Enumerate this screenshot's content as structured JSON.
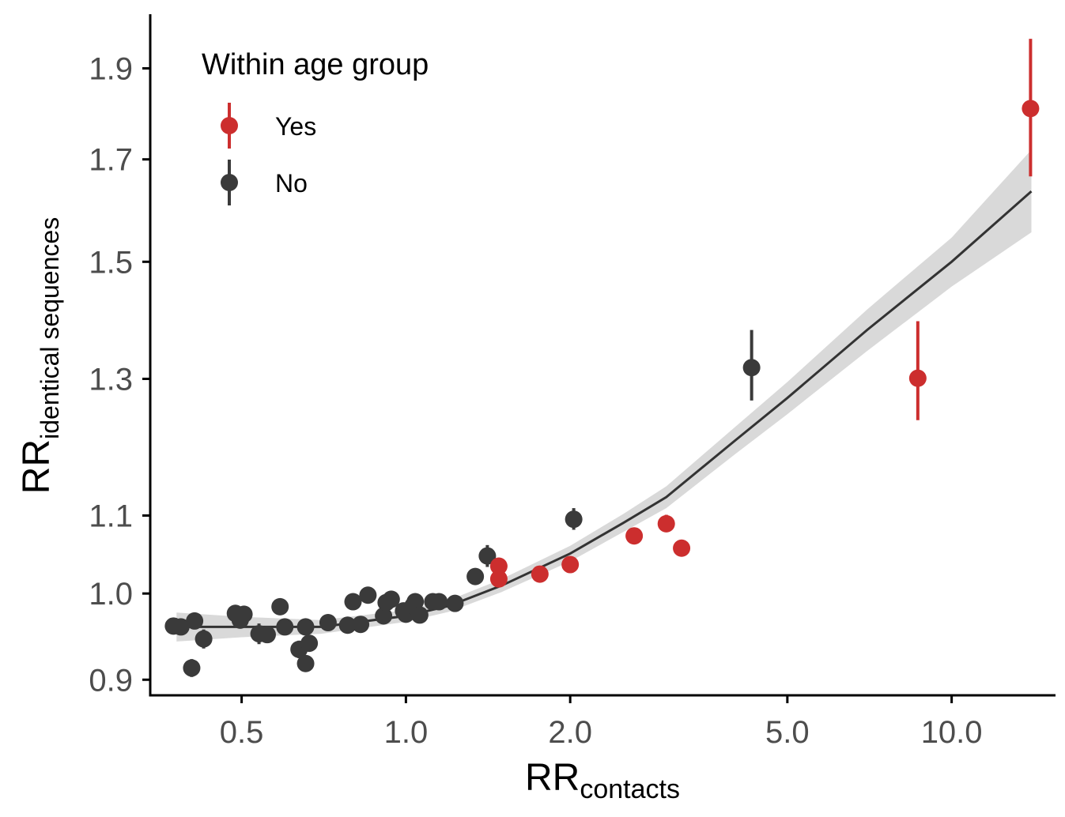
{
  "chart_data": {
    "type": "scatter",
    "x_scale": "log",
    "y_scale": "log",
    "xlim": [
      0.34,
      15.5
    ],
    "ylim": [
      0.883,
      2.03
    ],
    "x_ticks": [
      0.5,
      1.0,
      2.0,
      5.0,
      10.0
    ],
    "x_tick_labels": [
      "0.5",
      "1.0",
      "2.0",
      "5.0",
      "10.0"
    ],
    "y_ticks": [
      0.9,
      1.0,
      1.1,
      1.3,
      1.5,
      1.7,
      1.9
    ],
    "y_tick_labels": [
      "0.9",
      "1.0",
      "1.1",
      "1.3",
      "1.5",
      "1.7",
      "1.9"
    ],
    "xlabel": {
      "main": "RR",
      "sub": "contacts"
    },
    "ylabel": {
      "main": "RR",
      "sub": "identical sequences"
    },
    "grid": false,
    "legend": {
      "title": "Within age group",
      "position": "top-left",
      "entries": [
        {
          "key": "yes",
          "label": "Yes",
          "color": "#cc2e2e"
        },
        {
          "key": "no",
          "label": "No",
          "color": "#3a3a3a"
        }
      ]
    },
    "series": [
      {
        "group": "yes",
        "color": "#cc2e2e",
        "points": [
          {
            "x": 1.48,
            "y": 1.034,
            "lo": 1.025,
            "hi": 1.043
          },
          {
            "x": 1.48,
            "y": 1.018,
            "lo": 1.011,
            "hi": 1.025
          },
          {
            "x": 1.76,
            "y": 1.024,
            "lo": 1.018,
            "hi": 1.03
          },
          {
            "x": 2.0,
            "y": 1.036,
            "lo": 1.03,
            "hi": 1.042
          },
          {
            "x": 2.62,
            "y": 1.073,
            "lo": 1.066,
            "hi": 1.08
          },
          {
            "x": 3.0,
            "y": 1.089,
            "lo": 1.078,
            "hi": 1.101
          },
          {
            "x": 3.2,
            "y": 1.057,
            "lo": 1.05,
            "hi": 1.064
          },
          {
            "x": 8.67,
            "y": 1.301,
            "lo": 1.236,
            "hi": 1.395
          },
          {
            "x": 13.95,
            "y": 1.809,
            "lo": 1.665,
            "hi": 1.97
          }
        ]
      },
      {
        "group": "no",
        "color": "#3a3a3a",
        "points": [
          {
            "x": 0.375,
            "y": 0.961,
            "lo": 0.955,
            "hi": 0.967
          },
          {
            "x": 0.387,
            "y": 0.96,
            "lo": 0.954,
            "hi": 0.966
          },
          {
            "x": 0.41,
            "y": 0.967,
            "lo": 0.96,
            "hi": 0.974
          },
          {
            "x": 0.405,
            "y": 0.913,
            "lo": 0.903,
            "hi": 0.923
          },
          {
            "x": 0.426,
            "y": 0.946,
            "lo": 0.935,
            "hi": 0.957
          },
          {
            "x": 0.487,
            "y": 0.976,
            "lo": 0.969,
            "hi": 0.983
          },
          {
            "x": 0.497,
            "y": 0.968,
            "lo": 0.961,
            "hi": 0.975
          },
          {
            "x": 0.505,
            "y": 0.975,
            "lo": 0.968,
            "hi": 0.982
          },
          {
            "x": 0.538,
            "y": 0.952,
            "lo": 0.94,
            "hi": 0.964
          },
          {
            "x": 0.557,
            "y": 0.951,
            "lo": 0.944,
            "hi": 0.958
          },
          {
            "x": 0.588,
            "y": 0.984,
            "lo": 0.978,
            "hi": 0.99
          },
          {
            "x": 0.6,
            "y": 0.96,
            "lo": 0.954,
            "hi": 0.966
          },
          {
            "x": 0.637,
            "y": 0.934,
            "lo": 0.924,
            "hi": 0.944
          },
          {
            "x": 0.655,
            "y": 0.96,
            "lo": 0.953,
            "hi": 0.967
          },
          {
            "x": 0.655,
            "y": 0.918,
            "lo": 0.911,
            "hi": 0.925
          },
          {
            "x": 0.665,
            "y": 0.941,
            "lo": 0.932,
            "hi": 0.95
          },
          {
            "x": 0.72,
            "y": 0.965,
            "lo": 0.959,
            "hi": 0.971
          },
          {
            "x": 0.782,
            "y": 0.962,
            "lo": 0.956,
            "hi": 0.968
          },
          {
            "x": 0.8,
            "y": 0.99,
            "lo": 0.984,
            "hi": 0.996
          },
          {
            "x": 0.826,
            "y": 0.963,
            "lo": 0.957,
            "hi": 0.969
          },
          {
            "x": 0.852,
            "y": 0.998,
            "lo": 0.992,
            "hi": 1.004
          },
          {
            "x": 0.91,
            "y": 0.973,
            "lo": 0.967,
            "hi": 0.979
          },
          {
            "x": 0.92,
            "y": 0.989,
            "lo": 0.983,
            "hi": 0.995
          },
          {
            "x": 0.94,
            "y": 0.993,
            "lo": 0.987,
            "hi": 0.999
          },
          {
            "x": 0.99,
            "y": 0.979,
            "lo": 0.973,
            "hi": 0.985
          },
          {
            "x": 1.0,
            "y": 0.975,
            "lo": 0.969,
            "hi": 0.981
          },
          {
            "x": 1.03,
            "y": 0.985,
            "lo": 0.979,
            "hi": 0.991
          },
          {
            "x": 1.04,
            "y": 0.99,
            "lo": 0.984,
            "hi": 0.996
          },
          {
            "x": 1.06,
            "y": 0.974,
            "lo": 0.968,
            "hi": 0.98
          },
          {
            "x": 1.12,
            "y": 0.99,
            "lo": 0.984,
            "hi": 0.996
          },
          {
            "x": 1.15,
            "y": 0.99,
            "lo": 0.984,
            "hi": 0.996
          },
          {
            "x": 1.23,
            "y": 0.988,
            "lo": 0.982,
            "hi": 0.994
          },
          {
            "x": 1.34,
            "y": 1.021,
            "lo": 1.014,
            "hi": 1.028
          },
          {
            "x": 1.41,
            "y": 1.047,
            "lo": 1.033,
            "hi": 1.061
          },
          {
            "x": 2.03,
            "y": 1.095,
            "lo": 1.081,
            "hi": 1.11
          },
          {
            "x": 4.3,
            "y": 1.318,
            "lo": 1.266,
            "hi": 1.38
          }
        ]
      }
    ],
    "fit": {
      "color": "#333333",
      "band_color": "#d9d9d9",
      "points": [
        {
          "x": 0.38,
          "y": 0.96,
          "lo": 0.943,
          "hi": 0.977
        },
        {
          "x": 0.5,
          "y": 0.96,
          "lo": 0.948,
          "hi": 0.972
        },
        {
          "x": 0.7,
          "y": 0.96,
          "lo": 0.952,
          "hi": 0.968
        },
        {
          "x": 1.0,
          "y": 0.973,
          "lo": 0.966,
          "hi": 0.98
        },
        {
          "x": 1.2,
          "y": 0.985,
          "lo": 0.978,
          "hi": 0.992
        },
        {
          "x": 1.5,
          "y": 1.01,
          "lo": 1.002,
          "hi": 1.018
        },
        {
          "x": 2.0,
          "y": 1.05,
          "lo": 1.04,
          "hi": 1.06
        },
        {
          "x": 2.5,
          "y": 1.09,
          "lo": 1.078,
          "hi": 1.102
        },
        {
          "x": 3.0,
          "y": 1.125,
          "lo": 1.11,
          "hi": 1.14
        },
        {
          "x": 4.0,
          "y": 1.205,
          "lo": 1.185,
          "hi": 1.225
        },
        {
          "x": 5.0,
          "y": 1.27,
          "lo": 1.245,
          "hi": 1.295
        },
        {
          "x": 7.0,
          "y": 1.38,
          "lo": 1.345,
          "hi": 1.415
        },
        {
          "x": 10.0,
          "y": 1.5,
          "lo": 1.455,
          "hi": 1.545
        },
        {
          "x": 14.0,
          "y": 1.635,
          "lo": 1.555,
          "hi": 1.72
        }
      ]
    }
  }
}
